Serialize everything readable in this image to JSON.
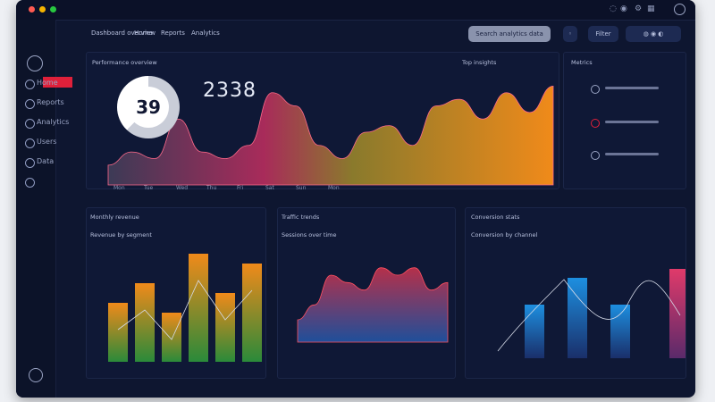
{
  "header": {
    "title_left": "Dashboard overview",
    "tab_1": "Home",
    "tab_2": "Reports",
    "tab_3": "Analytics",
    "search_label": "Search analytics data",
    "action_label": "Filter"
  },
  "sidebar": {
    "items": [
      {
        "label": "Home"
      },
      {
        "label": "Reports"
      },
      {
        "label": "Analytics"
      },
      {
        "label": "Users"
      },
      {
        "label": "Data"
      }
    ]
  },
  "main_panel": {
    "title": "Performance overview",
    "donut_value": "39",
    "big_number": "2338",
    "x_ticks": [
      "Mon",
      "Tue",
      "Wed",
      "Thu",
      "Fri",
      "Sat",
      "Sun",
      "Mon"
    ],
    "right_title": "Top insights"
  },
  "side_panel": {
    "title": "Metrics"
  },
  "panels": {
    "bar_panel_title": "Monthly revenue",
    "bar_panel_subtitle": "Revenue by segment",
    "area_panel_title": "Traffic trends",
    "area_panel_subtitle": "Sessions over time",
    "combo_panel_title": "Conversion stats",
    "combo_panel_subtitle": "Conversion by channel"
  },
  "colors": {
    "accent_red": "#e0203a",
    "accent_orange": "#f08a1a",
    "accent_blue": "#1d8fe0",
    "accent_pink": "#d63a6a"
  },
  "chart_data": [
    {
      "type": "area",
      "series": [
        {
          "values": [
            3,
            5,
            4,
            10,
            5,
            4,
            6,
            14,
            12,
            6,
            4,
            8,
            9,
            6,
            12,
            13,
            10,
            14,
            11,
            15
          ]
        }
      ],
      "ylim": [
        0,
        16
      ]
    },
    {
      "type": "bar",
      "values": [
        6,
        8,
        5,
        11,
        7,
        10
      ],
      "ylim": [
        0,
        12
      ]
    },
    {
      "type": "area",
      "series": [
        {
          "values": [
            3,
            5,
            9,
            8,
            7,
            10,
            9,
            10,
            7,
            8
          ]
        }
      ],
      "ylim": [
        0,
        12
      ]
    },
    {
      "type": "bar",
      "values": [
        6,
        9,
        6,
        10
      ],
      "ylim": [
        0,
        12
      ]
    }
  ]
}
